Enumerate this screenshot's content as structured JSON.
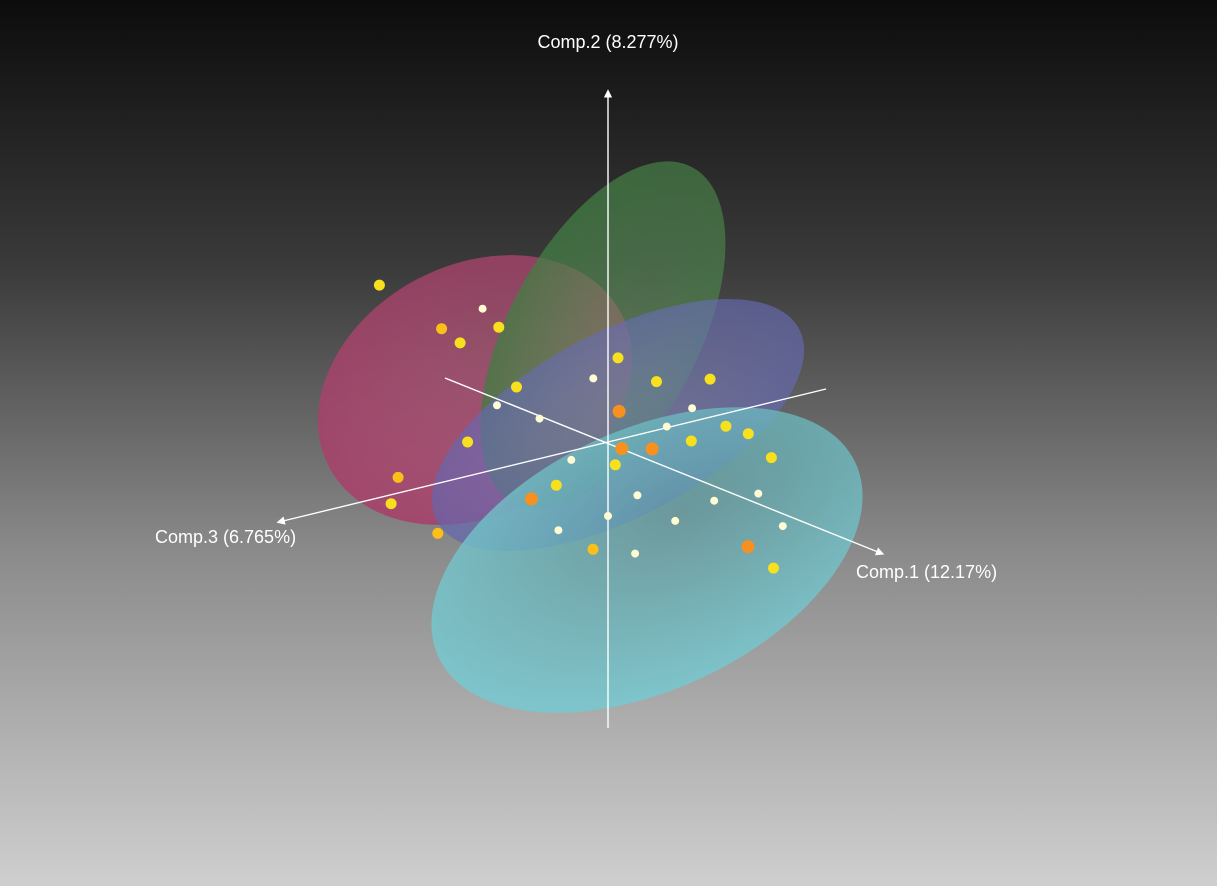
{
  "chart_data": {
    "type": "scatter",
    "title": "",
    "axes": {
      "x": {
        "label": "Comp.1 (12.17%)"
      },
      "y": {
        "label": "Comp.2 (8.277%)"
      },
      "z": {
        "label": "Comp.3 (6.765%)"
      }
    },
    "ellipsoid_colors": [
      "#c94f7c",
      "#4e8a4c",
      "#6a6fb8",
      "#6cc4cc"
    ],
    "point_colors": {
      "pale": "#fffbd2",
      "yellow": "#f8e01e",
      "amber": "#fbbf1a",
      "orange": "#f7901e"
    },
    "points": [
      {
        "x": -1.18,
        "y": 0.54,
        "z": 0.42,
        "c": "yellow"
      },
      {
        "x": -0.78,
        "y": 0.42,
        "z": 0.37,
        "c": "amber"
      },
      {
        "x": -0.68,
        "y": 0.37,
        "z": 0.34,
        "c": "yellow"
      },
      {
        "x": -0.55,
        "y": 0.57,
        "z": 0.31,
        "c": "pale"
      },
      {
        "x": -0.43,
        "y": 0.51,
        "z": 0.31,
        "c": "yellow"
      },
      {
        "x": 0.05,
        "y": 0.42,
        "z": -0.02,
        "c": "yellow"
      },
      {
        "x": 0.07,
        "y": 0.16,
        "z": -0.01,
        "c": "orange"
      },
      {
        "x": 0.09,
        "y": -0.02,
        "z": -0.01,
        "c": "orange"
      },
      {
        "x": 0.18,
        "y": -0.02,
        "z": -0.12,
        "c": "orange"
      },
      {
        "x": 0.2,
        "y": 0.32,
        "z": -0.13,
        "c": "yellow"
      },
      {
        "x": 0.39,
        "y": 0.35,
        "z": -0.3,
        "c": "yellow"
      },
      {
        "x": 0.55,
        "y": 0.1,
        "z": -0.4,
        "c": "yellow"
      },
      {
        "x": 0.56,
        "y": -0.46,
        "z": -0.39,
        "c": "orange"
      },
      {
        "x": 0.81,
        "y": -0.49,
        "z": -0.34,
        "c": "yellow"
      },
      {
        "x": -0.87,
        "y": -0.31,
        "z": 0.56,
        "c": "amber"
      },
      {
        "x": -0.91,
        "y": -0.45,
        "z": 0.57,
        "c": "yellow"
      },
      {
        "x": -0.76,
        "y": -0.59,
        "z": 0.41,
        "c": "amber"
      },
      {
        "x": -0.6,
        "y": -0.1,
        "z": 0.36,
        "c": "yellow"
      },
      {
        "x": -0.36,
        "y": 0.22,
        "z": 0.26,
        "c": "yellow"
      },
      {
        "x": -0.25,
        "y": -0.31,
        "z": 0.26,
        "c": "orange"
      },
      {
        "x": -0.16,
        "y": -0.46,
        "z": 0.17,
        "c": "pale"
      },
      {
        "x": -0.05,
        "y": -0.55,
        "z": 0.05,
        "c": "amber"
      },
      {
        "x": 0.14,
        "y": -0.54,
        "z": -0.05,
        "c": "pale"
      },
      {
        "x": 0.29,
        "y": -0.36,
        "z": -0.17,
        "c": "pale"
      },
      {
        "x": 0.42,
        "y": -0.25,
        "z": -0.3,
        "c": "pale"
      },
      {
        "x": 0.6,
        "y": -0.19,
        "z": -0.42,
        "c": "pale"
      },
      {
        "x": 0.72,
        "y": -0.33,
        "z": -0.47,
        "c": "pale"
      },
      {
        "x": 0.66,
        "y": 0.0,
        "z": -0.45,
        "c": "yellow"
      },
      {
        "x": 0.36,
        "y": 0.05,
        "z": -0.21,
        "c": "yellow"
      },
      {
        "x": 0.24,
        "y": 0.1,
        "z": -0.16,
        "c": "pale"
      },
      {
        "x": -0.15,
        "y": -0.12,
        "z": 0.1,
        "c": "pale"
      },
      {
        "x": -0.3,
        "y": 0.06,
        "z": 0.17,
        "c": "pale"
      },
      {
        "x": -0.48,
        "y": 0.1,
        "z": 0.28,
        "c": "pale"
      },
      {
        "x": 0.03,
        "y": -0.12,
        "z": -0.02,
        "c": "yellow"
      },
      {
        "x": 0.12,
        "y": -0.26,
        "z": -0.08,
        "c": "pale"
      },
      {
        "x": 0.33,
        "y": 0.2,
        "z": -0.24,
        "c": "pale"
      },
      {
        "x": 0.47,
        "y": 0.13,
        "z": -0.33,
        "c": "yellow"
      },
      {
        "x": -0.06,
        "y": 0.3,
        "z": 0.04,
        "c": "pale"
      },
      {
        "x": -0.2,
        "y": -0.25,
        "z": 0.15,
        "c": "yellow"
      },
      {
        "x": 0.0,
        "y": -0.38,
        "z": 0.0,
        "c": "pale"
      }
    ]
  }
}
